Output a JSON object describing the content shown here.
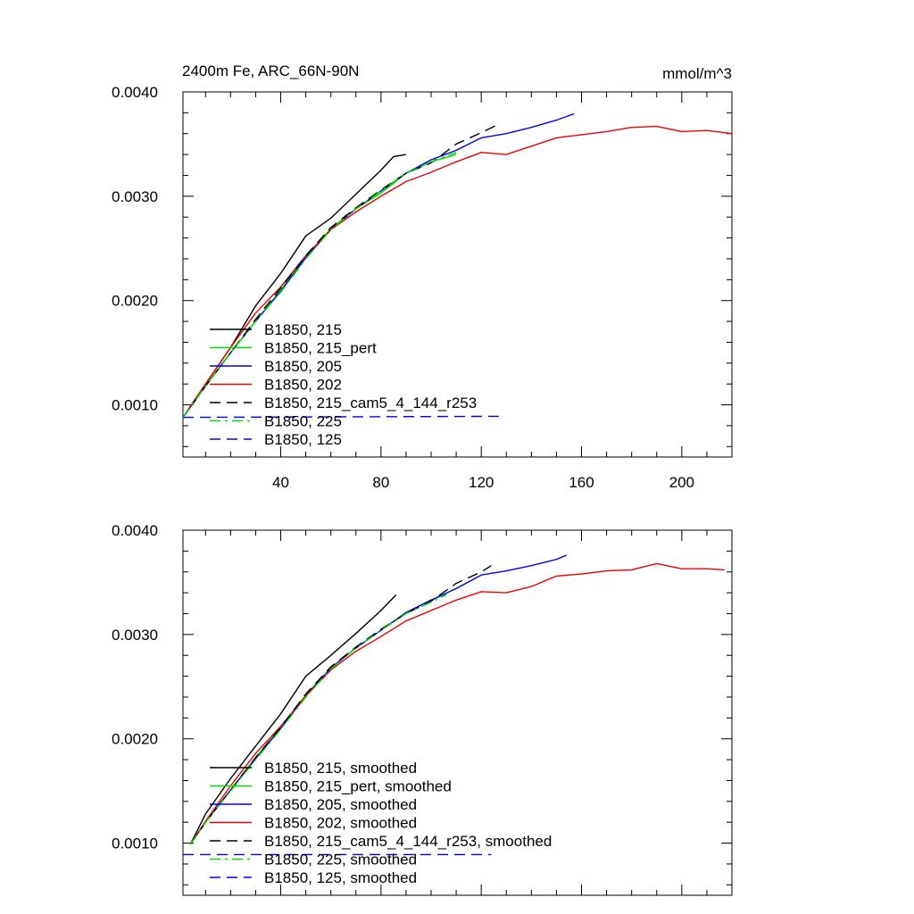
{
  "figure": {
    "title_left": "2400m Fe, ARC_66N-90N",
    "title_right": "mmol/m^3"
  },
  "colors": {
    "black": "#000000",
    "green": "#00dd00",
    "blue": "#0000ee",
    "red": "#ee0000"
  },
  "chart_data": [
    {
      "type": "line",
      "title": "2400m Fe, ARC_66N-90N",
      "units": "mmol/m^3",
      "xlim": [
        1,
        220
      ],
      "ylim": [
        0.0005,
        0.004
      ],
      "x_ticks": [
        40,
        80,
        120,
        160,
        200
      ],
      "x_tick_labels": [
        "40",
        "80",
        "120",
        "160",
        "200"
      ],
      "y_ticks": [
        0.001,
        0.002,
        0.003,
        0.004
      ],
      "y_tick_labels": [
        "0.0010",
        "0.0020",
        "0.0030",
        "0.0040"
      ],
      "legend_position": "bottom-left",
      "series": [
        {
          "name": "B1850, 215",
          "color": "#000000",
          "dash": "solid",
          "x": [
            1,
            10,
            20,
            30,
            40,
            50,
            60,
            70,
            80,
            85,
            90
          ],
          "y": [
            0.00088,
            0.0012,
            0.00155,
            0.00195,
            0.00226,
            0.00262,
            0.00279,
            0.00302,
            0.00325,
            0.00338,
            0.0034
          ]
        },
        {
          "name": "B1850, 215_pert",
          "color": "#00dd00",
          "dash": "solid",
          "x": [
            1,
            10,
            20,
            30,
            40,
            50,
            60,
            70,
            80,
            90,
            100,
            110
          ],
          "y": [
            0.00088,
            0.00118,
            0.0015,
            0.0018,
            0.0021,
            0.00242,
            0.00269,
            0.00288,
            0.00303,
            0.00322,
            0.00333,
            0.0034
          ]
        },
        {
          "name": "B1850, 205",
          "color": "#0000ee",
          "dash": "solid",
          "x": [
            1,
            10,
            20,
            30,
            40,
            50,
            60,
            70,
            80,
            90,
            100,
            110,
            120,
            130,
            140,
            150,
            157
          ],
          "y": [
            0.00088,
            0.00118,
            0.0015,
            0.0018,
            0.00209,
            0.00241,
            0.00268,
            0.00288,
            0.00305,
            0.00322,
            0.00335,
            0.00344,
            0.00356,
            0.0036,
            0.00366,
            0.00373,
            0.00379
          ]
        },
        {
          "name": "B1850, 202",
          "color": "#ee0000",
          "dash": "solid",
          "x": [
            1,
            10,
            20,
            30,
            40,
            50,
            60,
            70,
            80,
            90,
            100,
            110,
            120,
            130,
            140,
            150,
            160,
            170,
            180,
            190,
            200,
            210,
            220
          ],
          "y": [
            0.00088,
            0.0012,
            0.00155,
            0.00188,
            0.00213,
            0.00243,
            0.00268,
            0.00285,
            0.003,
            0.00314,
            0.00323,
            0.00333,
            0.00342,
            0.0034,
            0.00348,
            0.00356,
            0.00359,
            0.00362,
            0.00366,
            0.00367,
            0.00362,
            0.00363,
            0.0036
          ]
        },
        {
          "name": "B1850, 215_cam5_4_144_r253",
          "color": "#000000",
          "dash": "dashed",
          "x": [
            1,
            10,
            20,
            30,
            40,
            50,
            60,
            70,
            80,
            90,
            100,
            110,
            120,
            127
          ],
          "y": [
            0.00088,
            0.00118,
            0.0015,
            0.00182,
            0.00212,
            0.00243,
            0.0027,
            0.00289,
            0.00306,
            0.00322,
            0.00332,
            0.0035,
            0.00361,
            0.00369
          ]
        },
        {
          "name": "B1850, 225",
          "color": "#00dd00",
          "dash": "dashdot",
          "x": [
            1,
            10,
            20,
            30,
            40,
            50,
            60,
            70,
            80,
            90,
            100,
            110
          ],
          "y": [
            0.00088,
            0.00118,
            0.0015,
            0.0018,
            0.00208,
            0.0024,
            0.00268,
            0.00288,
            0.00305,
            0.00322,
            0.00333,
            0.00342
          ]
        },
        {
          "name": "B1850, 125",
          "color": "#0000ee",
          "dash": "dashed",
          "x": [
            1,
            127
          ],
          "y": [
            0.00088,
            0.00089
          ]
        }
      ]
    },
    {
      "type": "line",
      "title": "",
      "xlim": [
        1,
        220
      ],
      "ylim": [
        0.0005,
        0.004
      ],
      "x_ticks": [
        40,
        80,
        120,
        160,
        200
      ],
      "x_tick_labels": [],
      "y_ticks": [
        0.001,
        0.002,
        0.003,
        0.004
      ],
      "y_tick_labels": [
        "0.0010",
        "0.0020",
        "0.0030",
        "0.0040"
      ],
      "legend_position": "bottom-left",
      "series": [
        {
          "name": "B1850, 215, smoothed",
          "color": "#000000",
          "dash": "solid",
          "x": [
            4,
            10,
            20,
            30,
            40,
            50,
            60,
            70,
            80,
            86
          ],
          "y": [
            0.00099,
            0.00128,
            0.00162,
            0.00193,
            0.00224,
            0.0026,
            0.0028,
            0.00301,
            0.00323,
            0.00338
          ]
        },
        {
          "name": "B1850, 215_pert, smoothed",
          "color": "#00dd00",
          "dash": "solid",
          "x": [
            4,
            10,
            20,
            30,
            40,
            50,
            60,
            70,
            80,
            90,
            100,
            106
          ],
          "y": [
            0.00099,
            0.0012,
            0.00151,
            0.00182,
            0.00211,
            0.00242,
            0.00268,
            0.00287,
            0.00304,
            0.00321,
            0.00333,
            0.00339
          ]
        },
        {
          "name": "B1850, 205, smoothed",
          "color": "#0000ee",
          "dash": "solid",
          "x": [
            4,
            10,
            20,
            30,
            40,
            50,
            60,
            70,
            80,
            90,
            100,
            110,
            120,
            130,
            140,
            150,
            154
          ],
          "y": [
            0.00099,
            0.0012,
            0.00151,
            0.00181,
            0.0021,
            0.00241,
            0.00268,
            0.00287,
            0.00304,
            0.00321,
            0.00333,
            0.00344,
            0.00357,
            0.00361,
            0.00366,
            0.00372,
            0.00376
          ]
        },
        {
          "name": "B1850, 202, smoothed",
          "color": "#ee0000",
          "dash": "solid",
          "x": [
            4,
            10,
            20,
            30,
            40,
            50,
            60,
            70,
            80,
            90,
            100,
            110,
            120,
            130,
            140,
            150,
            160,
            170,
            180,
            190,
            200,
            210,
            217
          ],
          "y": [
            0.00099,
            0.00121,
            0.00155,
            0.00186,
            0.00212,
            0.00241,
            0.00266,
            0.00284,
            0.00298,
            0.00313,
            0.00323,
            0.00333,
            0.00341,
            0.0034,
            0.00346,
            0.00356,
            0.00358,
            0.00361,
            0.00362,
            0.00368,
            0.00363,
            0.00363,
            0.00362
          ]
        },
        {
          "name": "B1850, 215_cam5_4_144_r253, smoothed",
          "color": "#000000",
          "dash": "dashed",
          "x": [
            4,
            10,
            20,
            30,
            40,
            50,
            60,
            70,
            80,
            90,
            100,
            110,
            120,
            124
          ],
          "y": [
            0.00099,
            0.0012,
            0.00151,
            0.00182,
            0.00211,
            0.00243,
            0.00269,
            0.00288,
            0.00305,
            0.0032,
            0.00332,
            0.00349,
            0.0036,
            0.00366
          ]
        },
        {
          "name": "B1850, 225, smoothed",
          "color": "#00dd00",
          "dash": "dashdot",
          "x": [
            4,
            10,
            20,
            30,
            40,
            50,
            60,
            70,
            80,
            90,
            100,
            106
          ],
          "y": [
            0.00099,
            0.0012,
            0.0015,
            0.0018,
            0.00209,
            0.0024,
            0.00267,
            0.00287,
            0.00304,
            0.0032,
            0.00331,
            0.00338
          ]
        },
        {
          "name": "B1850, 125, smoothed",
          "color": "#0000ee",
          "dash": "dashed",
          "x": [
            1,
            124
          ],
          "y": [
            0.00089,
            0.00089
          ]
        }
      ]
    }
  ]
}
